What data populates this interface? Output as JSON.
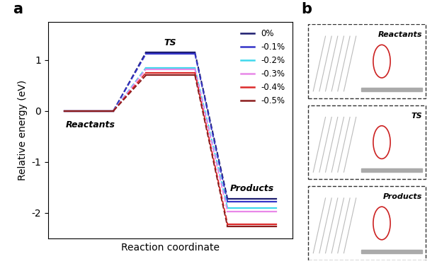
{
  "chart_data": {
    "type": "energy_profile",
    "panel_label": "a",
    "x_label": "Reaction coordinate",
    "y_label": "Relative energy (eV)",
    "categories": [
      "Reactants",
      "TS",
      "Products"
    ],
    "series": [
      {
        "name": "0%",
        "color": "#1c1c6e",
        "values": [
          0,
          1.15,
          -1.72
        ]
      },
      {
        "name": "-0.1%",
        "color": "#3434c8",
        "values": [
          0,
          1.12,
          -1.78
        ]
      },
      {
        "name": "-0.2%",
        "color": "#3fd8ec",
        "values": [
          0,
          0.85,
          -1.9
        ]
      },
      {
        "name": "-0.3%",
        "color": "#e888e8",
        "values": [
          0,
          0.82,
          -1.97
        ]
      },
      {
        "name": "-0.4%",
        "color": "#dc2a2a",
        "values": [
          0,
          0.75,
          -2.22
        ]
      },
      {
        "name": "-0.5%",
        "color": "#8b1c1c",
        "values": [
          0,
          0.7,
          -2.27
        ]
      }
    ],
    "ylim": [
      -2.5,
      1.75
    ],
    "yticks": [
      -2,
      -1,
      0,
      1
    ],
    "tick_labels": "y",
    "legend": "upper right",
    "line_style": "solid"
  },
  "panel_b": {
    "label": "b",
    "boxes": [
      "Reactants",
      "TS",
      "Products"
    ]
  }
}
